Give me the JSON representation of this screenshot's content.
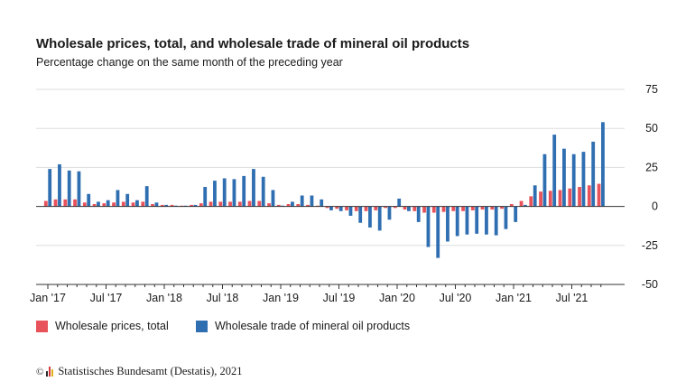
{
  "header": {
    "title": "Wholesale prices, total, and wholesale trade of mineral oil products",
    "subtitle": "Percentage change on the same month of the preceding year"
  },
  "legend": {
    "series1": "Wholesale prices, total",
    "series2": "Wholesale trade of mineral oil products"
  },
  "footer": {
    "copyright": "©",
    "source": "Statistisches Bundesamt (Destatis), 2021",
    "logo_colors": [
      "#2a2a2a",
      "#d63a3a",
      "#e0b21a"
    ]
  },
  "colors": {
    "series1": "#e8525a",
    "series2": "#2f6eb1",
    "grid": "#dddddd",
    "axis": "#333333"
  },
  "chart_data": {
    "type": "bar",
    "grid": true,
    "legend_position": "bottom",
    "ylim": [
      -50,
      75
    ],
    "yticks": [
      75,
      50,
      25,
      0,
      -25,
      -50
    ],
    "x_tick_labels": [
      "Jan '17",
      "Jul '17",
      "Jan '18",
      "Jul '18",
      "Jan '19",
      "Jul '19",
      "Jan '20",
      "Jul '20",
      "Jan '21",
      "Jul '21"
    ],
    "x_tick_every": 6,
    "categories": [
      "2017-01",
      "2017-02",
      "2017-03",
      "2017-04",
      "2017-05",
      "2017-06",
      "2017-07",
      "2017-08",
      "2017-09",
      "2017-10",
      "2017-11",
      "2017-12",
      "2018-01",
      "2018-02",
      "2018-03",
      "2018-04",
      "2018-05",
      "2018-06",
      "2018-07",
      "2018-08",
      "2018-09",
      "2018-10",
      "2018-11",
      "2018-12",
      "2019-01",
      "2019-02",
      "2019-03",
      "2019-04",
      "2019-05",
      "2019-06",
      "2019-07",
      "2019-08",
      "2019-09",
      "2019-10",
      "2019-11",
      "2019-12",
      "2020-01",
      "2020-02",
      "2020-03",
      "2020-04",
      "2020-05",
      "2020-06",
      "2020-07",
      "2020-08",
      "2020-09",
      "2020-10",
      "2020-11",
      "2020-12",
      "2021-01",
      "2021-02",
      "2021-03",
      "2021-04",
      "2021-05",
      "2021-06",
      "2021-07",
      "2021-08",
      "2021-09",
      "2021-10"
    ],
    "series": [
      {
        "name": "Wholesale prices, total",
        "values": [
          3.5,
          4.5,
          4.5,
          4.5,
          2.5,
          1.5,
          2,
          2.5,
          3,
          2.5,
          3,
          1.5,
          1,
          1,
          0.5,
          1,
          2,
          3,
          3,
          3,
          3,
          3.5,
          3.5,
          2,
          1,
          1.5,
          1.5,
          1,
          0.5,
          -1,
          -1.5,
          -2.5,
          -3,
          -3,
          -2.5,
          -1,
          -1,
          -2,
          -3,
          -4,
          -4,
          -3.5,
          -3,
          -3,
          -2.5,
          -2,
          -2,
          -1.5,
          1.5,
          3.5,
          6.5,
          9.5,
          10,
          10.5,
          11.5,
          12.5,
          13.5,
          14.5
        ]
      },
      {
        "name": "Wholesale trade of mineral oil products",
        "values": [
          24,
          27,
          23,
          22.5,
          8,
          3,
          4,
          10.5,
          8,
          4,
          13,
          2.5,
          1,
          0.5,
          0.5,
          1,
          12.5,
          16.5,
          18,
          17.5,
          19.5,
          24,
          19,
          10.5,
          0.5,
          3,
          7,
          7,
          4.5,
          -2.5,
          -3,
          -6,
          -10.5,
          -13.5,
          -15.5,
          -8.5,
          5,
          -3,
          -10,
          -26,
          -33,
          -22.5,
          -19,
          -18,
          -17.5,
          -18,
          -18.5,
          -14.5,
          -10,
          1,
          13.5,
          33.5,
          46,
          37,
          33.5,
          35,
          41.5,
          54
        ]
      }
    ]
  }
}
